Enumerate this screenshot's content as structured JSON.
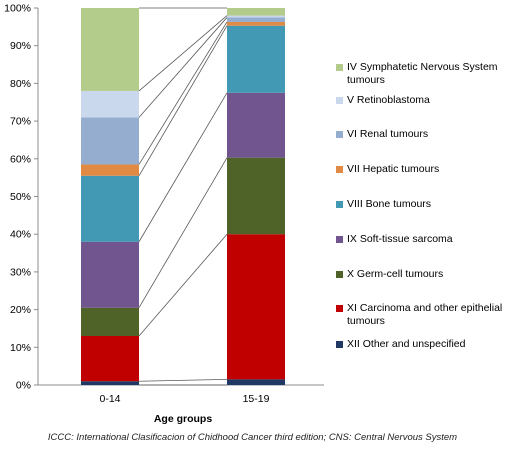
{
  "chart_data": {
    "type": "bar",
    "stacked": true,
    "percent": true,
    "categories": [
      "0-14",
      "15-19"
    ],
    "xlabel": "Age groups",
    "ylabel": "",
    "ylim": [
      0,
      100
    ],
    "yticks": [
      "0%",
      "10%",
      "20%",
      "30%",
      "40%",
      "50%",
      "60%",
      "70%",
      "80%",
      "90%",
      "100%"
    ],
    "series": [
      {
        "name": "XII Other and unspecified",
        "color": "#1f3864",
        "values": [
          1,
          1.5
        ]
      },
      {
        "name": "XI Carcinoma and other epithelial tumours",
        "color": "#c00000",
        "values": [
          12,
          38.5
        ]
      },
      {
        "name": "X Germ-cell tumours",
        "color": "#4f6228",
        "values": [
          7.5,
          20.3
        ]
      },
      {
        "name": "IX Soft-tissue sarcoma",
        "color": "#71558f",
        "values": [
          17.5,
          17.2
        ]
      },
      {
        "name": "VIII Bone tumours",
        "color": "#4299b3",
        "values": [
          17.5,
          17.8
        ]
      },
      {
        "name": "VII Hepatic tumours",
        "color": "#e08a43",
        "values": [
          3,
          1
        ]
      },
      {
        "name": "VI Renal tumours",
        "color": "#95adcf",
        "values": [
          12.5,
          1.2
        ]
      },
      {
        "name": "V Retinoblastoma",
        "color": "#c9d8ec",
        "values": [
          7,
          0.5
        ]
      },
      {
        "name": "IV Symphatetic Nervous System tumours",
        "color": "#b3cb8b",
        "values": [
          22,
          2
        ]
      }
    ],
    "grid": false,
    "legend_position": "right"
  },
  "footnote": "ICCC: International Clasificacion of Chidhood Cancer third edition; CNS: Central Nervous System"
}
